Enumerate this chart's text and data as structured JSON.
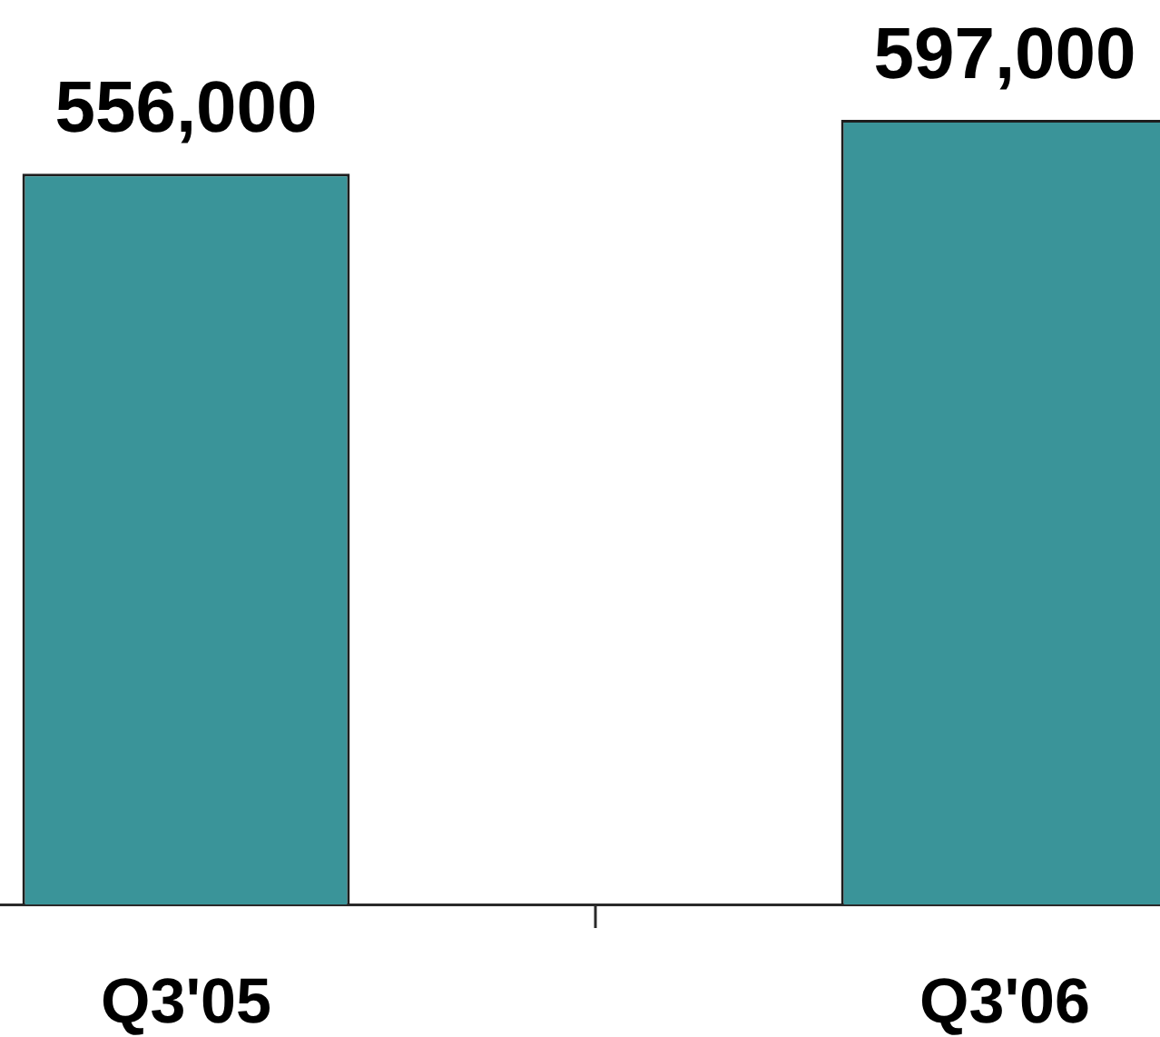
{
  "chart_data": {
    "type": "bar",
    "categories": [
      "Q3'05",
      "Q3'06"
    ],
    "values": [
      556000,
      597000
    ],
    "color": "#3a9499",
    "value_labels": [
      "556,000",
      "597,000"
    ],
    "tick_labels": "x"
  }
}
